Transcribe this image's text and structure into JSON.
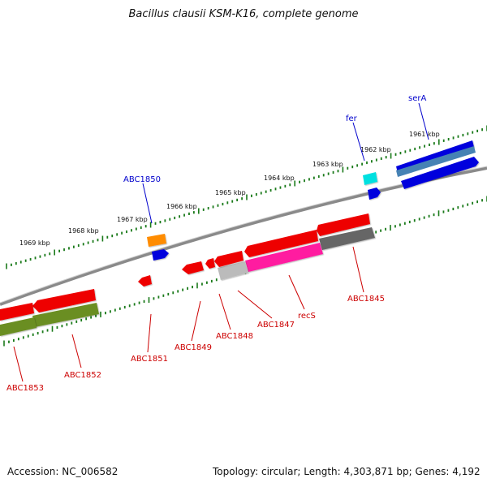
{
  "header": {
    "title": "Bacillus clausii KSM-K16, complete genome"
  },
  "footer": {
    "accession": "Accession: NC_006582",
    "topology": "Topology: circular; Length: 4,303,871 bp; Genes: 4,192"
  },
  "colors": {
    "backbone": "#888888",
    "ticks": "#1a7a1a",
    "tick_label": "#111111",
    "label_forward": "#0000cc",
    "label_reverse": "#cc0000"
  },
  "scale": {
    "unit": "kbp",
    "tick_labels": [
      "1961 kbp",
      "1962 kbp",
      "1963 kbp",
      "1964 kbp",
      "1965 kbp",
      "1966 kbp",
      "1967 kbp",
      "1968 kbp",
      "1969 kbp"
    ]
  },
  "genes": {
    "forward_labels": [
      "serA",
      "fer",
      "ABC1850"
    ],
    "reverse_labels": [
      "ABC1845",
      "recS",
      "ABC1847",
      "ABC1848",
      "ABC1849",
      "ABC1851",
      "ABC1852",
      "ABC1853"
    ]
  }
}
